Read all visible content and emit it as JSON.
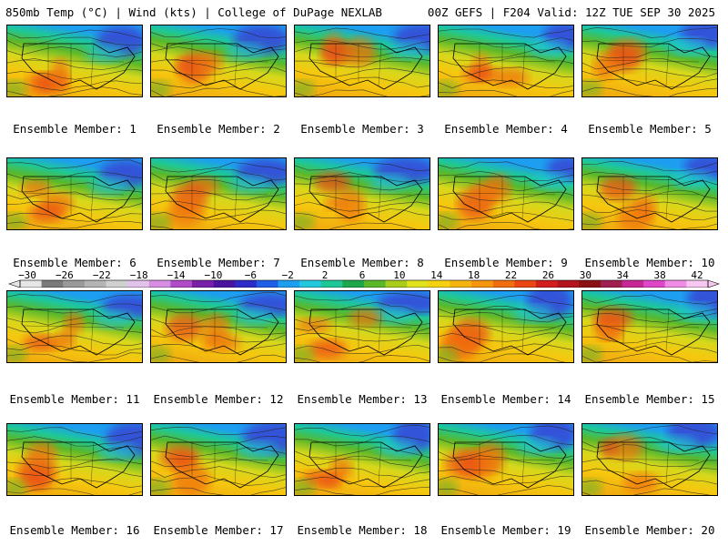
{
  "header": {
    "left": "850mb Temp (°C) | Wind (kts) | College of DuPage NEXLAB",
    "right": "00Z GEFS | F204 Valid: 12Z TUE SEP 30 2025"
  },
  "members": [
    {
      "label": "Ensemble Member: 1"
    },
    {
      "label": "Ensemble Member: 2"
    },
    {
      "label": "Ensemble Member: 3"
    },
    {
      "label": "Ensemble Member: 4"
    },
    {
      "label": "Ensemble Member: 5"
    },
    {
      "label": "Ensemble Member: 6"
    },
    {
      "label": "Ensemble Member: 7"
    },
    {
      "label": "Ensemble Member: 8"
    },
    {
      "label": "Ensemble Member: 9"
    },
    {
      "label": "Ensemble Member: 10"
    },
    {
      "label": "Ensemble Member: 11"
    },
    {
      "label": "Ensemble Member: 12"
    },
    {
      "label": "Ensemble Member: 13"
    },
    {
      "label": "Ensemble Member: 14"
    },
    {
      "label": "Ensemble Member: 15"
    },
    {
      "label": "Ensemble Member: 16"
    },
    {
      "label": "Ensemble Member: 17"
    },
    {
      "label": "Ensemble Member: 18"
    },
    {
      "label": "Ensemble Member: 19"
    },
    {
      "label": "Ensemble Member: 20"
    }
  ],
  "colorbar": {
    "labels": [
      "-30",
      "-26",
      "-22",
      "-18",
      "-14",
      "-10",
      "-6",
      "-2",
      "2",
      "6",
      "10",
      "14",
      "18",
      "22",
      "26",
      "30",
      "34",
      "38",
      "42"
    ],
    "colors": [
      "#e6e6e6",
      "#7a7a7a",
      "#9a9a9a",
      "#b4b4b4",
      "#d0d0d0",
      "#e2c3ea",
      "#d78ee2",
      "#b04cc8",
      "#7a1fa8",
      "#4a14a0",
      "#2d2cc8",
      "#1f5ee6",
      "#1d9ef0",
      "#22c8dc",
      "#1ec896",
      "#1ca84a",
      "#5ab82a",
      "#a8cc1c",
      "#e2e21c",
      "#f5d20f",
      "#f5b40f",
      "#f5960f",
      "#f06e0f",
      "#ea4614",
      "#d21e1e",
      "#b4141e",
      "#8c0f14",
      "#a01e50",
      "#c82896",
      "#e046c8",
      "#f08ce6",
      "#f8c8f0"
    ]
  }
}
